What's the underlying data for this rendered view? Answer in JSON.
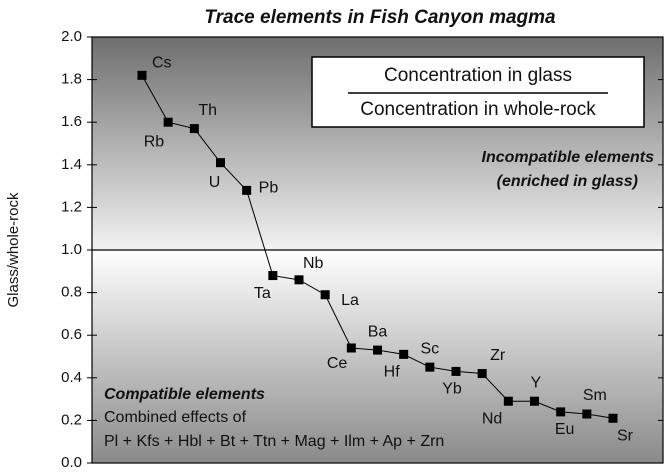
{
  "chart_data": {
    "type": "line",
    "title": "Trace elements in Fish Canyon magma",
    "y_label": "Glass/whole-rock",
    "ratio_numerator": "Concentration in glass",
    "ratio_denominator": "Concentration in whole-rock",
    "annotations": [
      "Incompatible elements",
      "(enriched in glass)",
      "Compatible elements",
      "Combined effects of",
      "Pl + Kfs + Hbl + Bt + Ttn + Mag + Ilm + Ap + Zrn"
    ],
    "categories": [
      "Cs",
      "Rb",
      "Th",
      "U",
      "Pb",
      "Ta",
      "Nb",
      "La",
      "Ce",
      "Ba",
      "Hf",
      "Sc",
      "Yb",
      "Zr",
      "Nd",
      "Y",
      "Eu",
      "Sm",
      "Sr"
    ],
    "values": [
      1.82,
      1.6,
      1.57,
      1.41,
      1.28,
      0.88,
      0.86,
      0.79,
      0.54,
      0.53,
      0.51,
      0.45,
      0.43,
      0.42,
      0.29,
      0.29,
      0.24,
      0.23,
      0.21
    ],
    "color": "#000000",
    "reference_line": 1.0,
    "ylim": [
      0,
      2
    ],
    "yticks": [
      {
        "value": 0,
        "label": "0.0"
      },
      0.2,
      0.4,
      0.6,
      0.8,
      {
        "value": 1,
        "label": "1.0"
      },
      1.2,
      1.4,
      1.6,
      1.8,
      {
        "value": 2,
        "label": "2.0"
      }
    ]
  }
}
